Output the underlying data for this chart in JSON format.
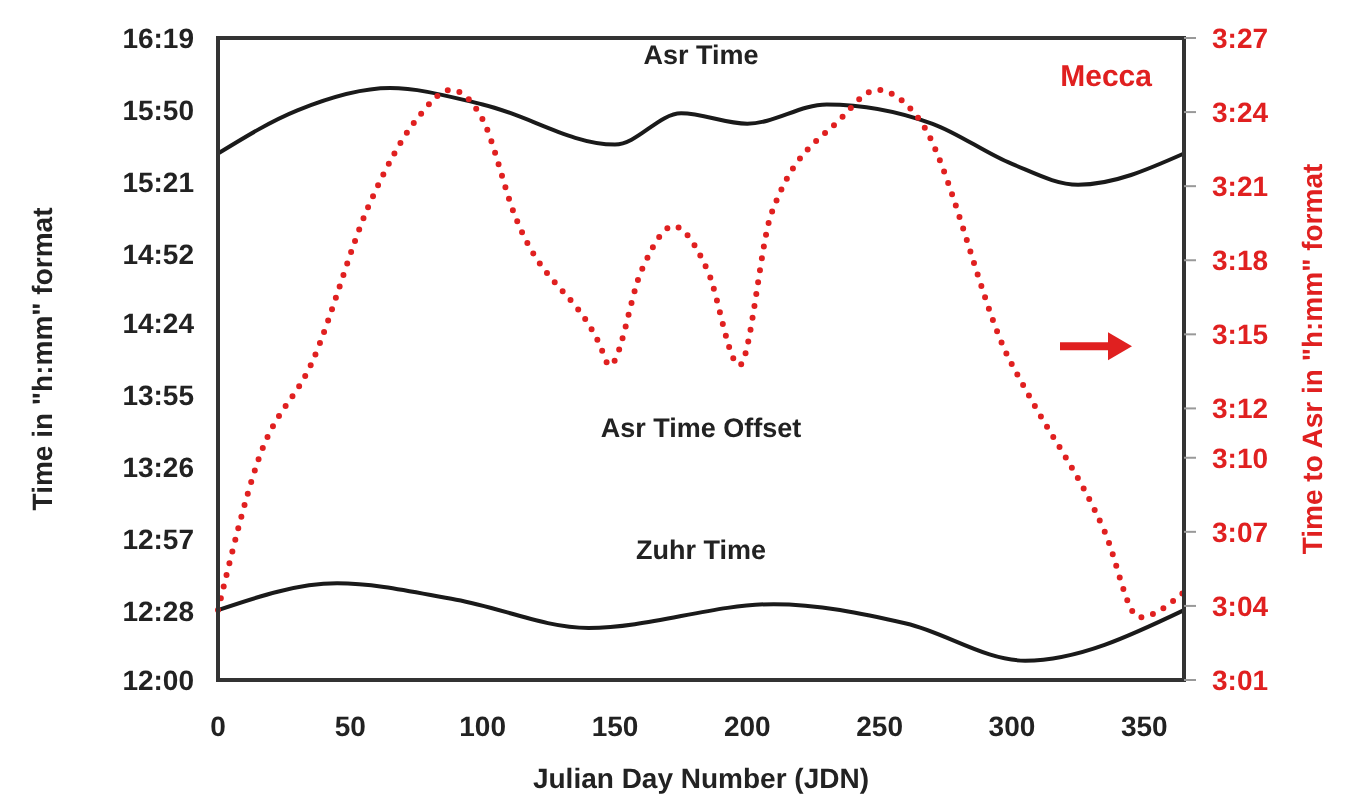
{
  "chart_data": {
    "type": "line",
    "xlabel": "Julian Day Number (JDN)",
    "ylabel": "Time in \"h:mm\" format",
    "y2label": "Time to Asr in \"h:mm\" format",
    "annotations": [
      "Mecca"
    ],
    "xlim": [
      0,
      365
    ],
    "xticks": [
      0,
      50,
      100,
      150,
      200,
      250,
      300,
      350
    ],
    "ylim": [
      12,
      16.3167
    ],
    "yticks": [
      {
        "value": 12,
        "label": "12:00"
      },
      {
        "value": 12.4667,
        "label": "12:28"
      },
      {
        "value": 12.95,
        "label": "12:57"
      },
      {
        "value": 13.4333,
        "label": "13:26"
      },
      {
        "value": 13.9167,
        "label": "13:55"
      },
      {
        "value": 14.4,
        "label": "14:24"
      },
      {
        "value": 14.8667,
        "label": "14:52"
      },
      {
        "value": 15.35,
        "label": "15:21"
      },
      {
        "value": 15.8333,
        "label": "15:50"
      },
      {
        "value": 16.3167,
        "label": "16:19"
      }
    ],
    "y2lim": [
      3.0167,
      3.45
    ],
    "y2ticks": [
      {
        "value": 3.0167,
        "label": "3:01"
      },
      {
        "value": 3.0667,
        "label": "3:04"
      },
      {
        "value": 3.1167,
        "label": "3:07"
      },
      {
        "value": 3.1667,
        "label": "3:10"
      },
      {
        "value": 3.2,
        "label": "3:12"
      },
      {
        "value": 3.25,
        "label": "3:15"
      },
      {
        "value": 3.3,
        "label": "3:18"
      },
      {
        "value": 3.35,
        "label": "3:21"
      },
      {
        "value": 3.4,
        "label": "3:24"
      },
      {
        "value": 3.45,
        "label": "3:27"
      }
    ],
    "grid": false,
    "series": [
      {
        "name": "Asr Time",
        "color": "#1a1a1a",
        "line_style": "solid",
        "x": [
          0,
          30,
          65,
          100,
          150,
          175,
          200,
          230,
          270,
          300,
          325,
          365
        ],
        "values": [
          15.54,
          15.83,
          15.98,
          15.87,
          15.6,
          15.81,
          15.74,
          15.87,
          15.74,
          15.47,
          15.33,
          15.54
        ]
      },
      {
        "name": "Zuhr Time",
        "color": "#1a1a1a",
        "line_style": "solid",
        "x": [
          0,
          45,
          90,
          140,
          210,
          260,
          305,
          365
        ],
        "values": [
          12.47,
          12.65,
          12.54,
          12.35,
          12.51,
          12.38,
          12.13,
          12.47
        ]
      },
      {
        "name": "Asr Time Offset",
        "color": "#e02020",
        "line_style": "dotted",
        "axis": "y2",
        "x": [
          0,
          15,
          36,
          57,
          75,
          88,
          100,
          112,
          144,
          148,
          160,
          172,
          185,
          197,
          209,
          235,
          249,
          265,
          299,
          306,
          335,
          348,
          365
        ],
        "values": [
          3.064,
          3.164,
          3.233,
          3.337,
          3.395,
          3.415,
          3.395,
          3.331,
          3.244,
          3.229,
          3.293,
          3.323,
          3.293,
          3.229,
          3.331,
          3.395,
          3.415,
          3.395,
          3.233,
          3.21,
          3.117,
          3.059,
          3.076
        ]
      }
    ]
  }
}
